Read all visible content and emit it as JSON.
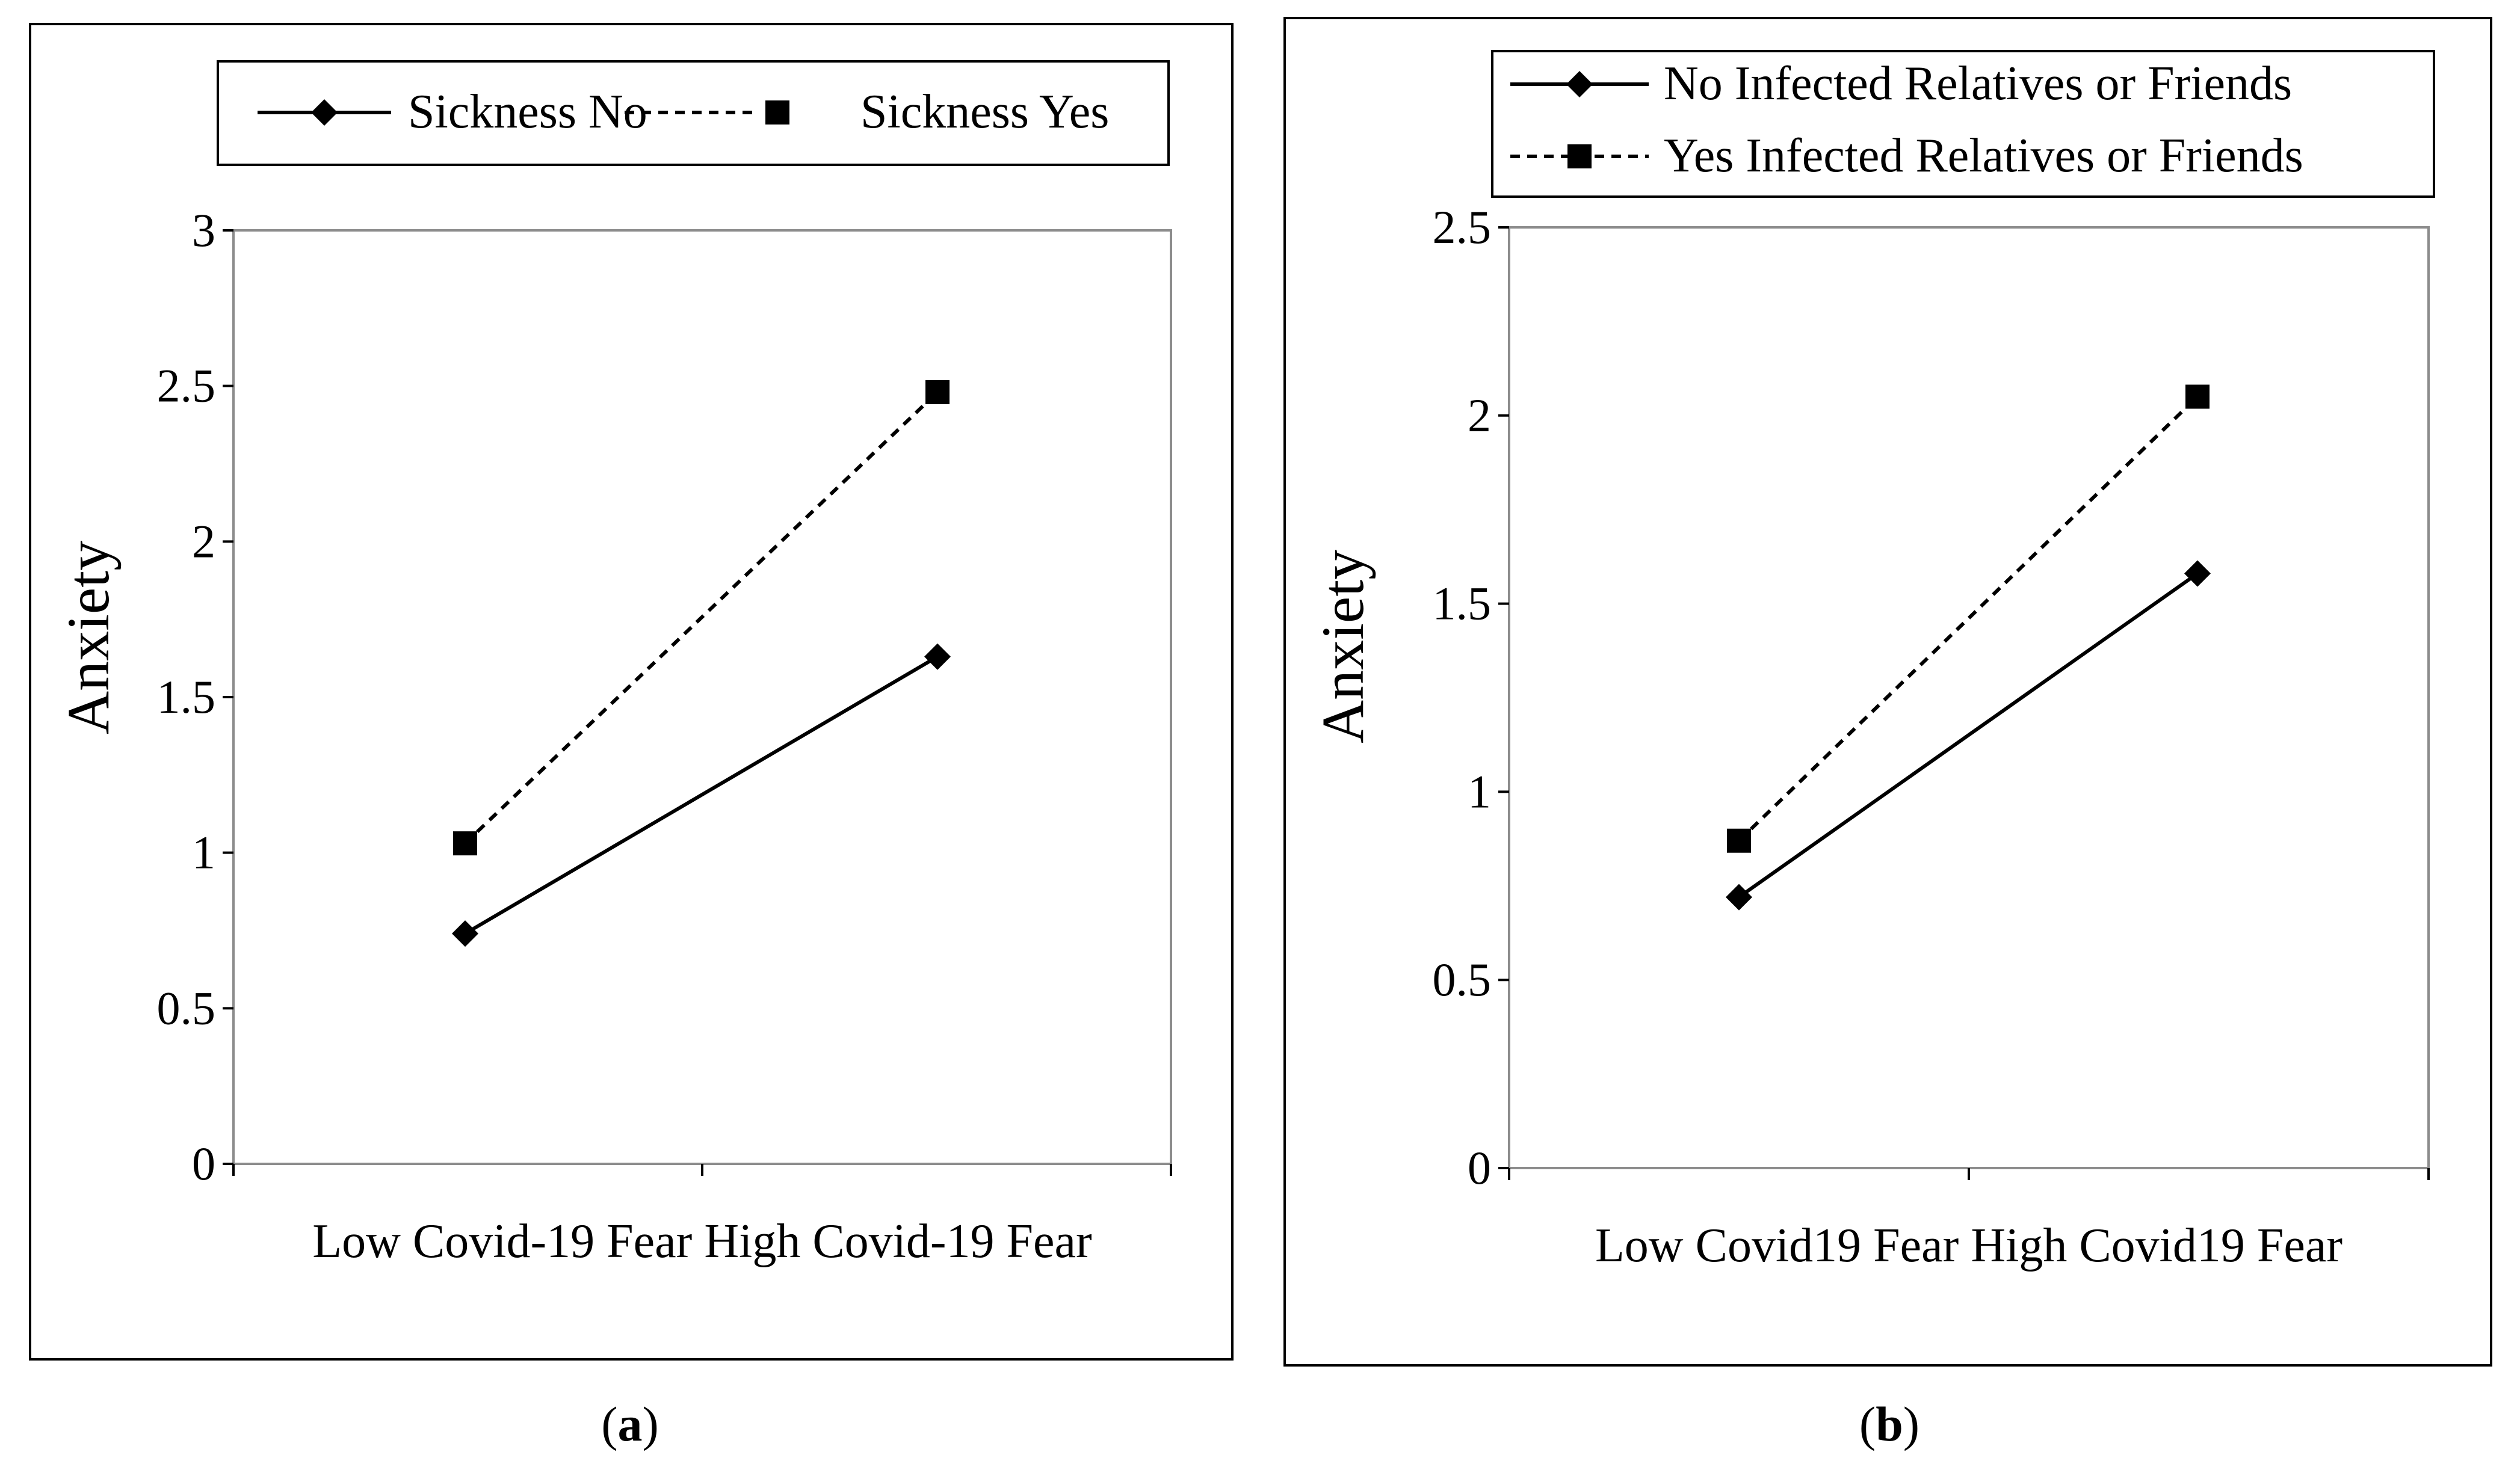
{
  "figure": {
    "background": "#ffffff",
    "frame_color": "#000000",
    "plot_border_color": "#8c8c8c",
    "line_color": "#000000"
  },
  "chart_data": [
    {
      "type": "line",
      "panel_label_prefix": "(",
      "panel_label_letter": "a",
      "panel_label_suffix": ")",
      "categories": [
        "Low Covid-19 Fear",
        "High Covid-19 Fear"
      ],
      "series": [
        {
          "name": "Sickness No",
          "values": [
            0.74,
            1.63
          ],
          "marker": "diamond",
          "line_style": "solid"
        },
        {
          "name": "Sickness Yes",
          "values": [
            1.03,
            2.48
          ],
          "marker": "square",
          "line_style": "dashed"
        }
      ],
      "ylabel": "Anxiety",
      "xlabel": "",
      "ylim": [
        0,
        3
      ],
      "yticks": [
        "0",
        "0.5",
        "1",
        "1.5",
        "2",
        "2.5",
        "3"
      ],
      "ytick_values": [
        0,
        0.5,
        1,
        1.5,
        2,
        2.5,
        3
      ],
      "legend_position": "top",
      "legend_layout": "horizontal",
      "grid": false
    },
    {
      "type": "line",
      "panel_label_prefix": "(",
      "panel_label_letter": "b",
      "panel_label_suffix": ")",
      "categories": [
        "Low Covid19 Fear",
        "High Covid19 Fear"
      ],
      "series": [
        {
          "name": "No Infected Relatives or Friends",
          "values": [
            0.72,
            1.58
          ],
          "marker": "diamond",
          "line_style": "solid"
        },
        {
          "name": "Yes Infected Relatives or Friends",
          "values": [
            0.87,
            2.05
          ],
          "marker": "square",
          "line_style": "dashed"
        }
      ],
      "ylabel": "Anxiety",
      "xlabel": "",
      "ylim": [
        0,
        2.5
      ],
      "yticks": [
        "0",
        "0.5",
        "1",
        "1.5",
        "2",
        "2.5"
      ],
      "ytick_values": [
        0,
        0.5,
        1,
        1.5,
        2,
        2.5
      ],
      "legend_position": "top",
      "legend_layout": "vertical",
      "grid": false
    }
  ]
}
